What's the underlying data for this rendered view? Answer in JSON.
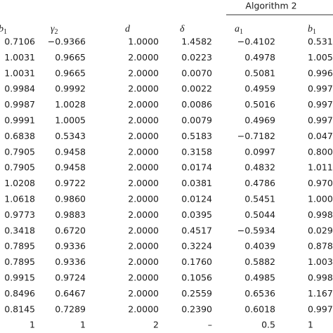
{
  "header": {
    "group": "Algorithm 2",
    "columns": [
      {
        "symbol": "b",
        "subscript": "1"
      },
      {
        "symbol": "γ",
        "subscript": "2"
      },
      {
        "symbol": "d"
      },
      {
        "symbol": "δ"
      },
      {
        "symbol": "a",
        "subscript": "1"
      },
      {
        "symbol": "b",
        "subscript": "1"
      }
    ]
  },
  "table": {
    "rows": [
      [
        "0.7106",
        "−0.9366",
        "1.0000",
        "1.4582",
        "−0.4102",
        "0.531"
      ],
      [
        "1.0031",
        "0.9665",
        "2.0000",
        "0.0223",
        "0.4978",
        "1.005"
      ],
      [
        "1.0031",
        "0.9665",
        "2.0000",
        "0.0070",
        "0.5081",
        "0.996"
      ],
      [
        "0.9984",
        "0.9992",
        "2.0000",
        "0.0022",
        "0.4959",
        "0.997"
      ],
      [
        "0.9987",
        "1.0028",
        "2.0000",
        "0.0086",
        "0.5016",
        "0.997"
      ],
      [
        "0.9991",
        "1.0005",
        "2.0000",
        "0.0079",
        "0.4969",
        "0.997"
      ],
      [
        "0.6838",
        "0.5343",
        "2.0000",
        "0.5183",
        "−0.7182",
        "0.047"
      ],
      [
        "0.7905",
        "0.9458",
        "2.0000",
        "0.3158",
        "0.0997",
        "0.800"
      ],
      [
        "0.7905",
        "0.9458",
        "2.0000",
        "0.0174",
        "0.4832",
        "1.011"
      ],
      [
        "1.0208",
        "0.9722",
        "2.0000",
        "0.0381",
        "0.4786",
        "0.970"
      ],
      [
        "1.0618",
        "0.9860",
        "2.0000",
        "0.0124",
        "0.5451",
        "1.000"
      ],
      [
        "0.9773",
        "0.9883",
        "2.0000",
        "0.0395",
        "0.5044",
        "0.998"
      ],
      [
        "0.3418",
        "0.6720",
        "2.0000",
        "0.4517",
        "−0.5934",
        "0.029"
      ],
      [
        "0.7895",
        "0.9336",
        "2.0000",
        "0.3224",
        "0.4039",
        "0.878"
      ],
      [
        "0.7895",
        "0.9336",
        "2.0000",
        "0.1760",
        "0.5882",
        "1.003"
      ],
      [
        "0.9915",
        "0.9724",
        "2.0000",
        "0.1056",
        "0.4985",
        "0.998"
      ],
      [
        "0.8496",
        "0.6467",
        "2.0000",
        "0.2559",
        "0.6536",
        "1.167"
      ],
      [
        "0.8145",
        "0.7289",
        "2.0000",
        "0.2390",
        "0.6018",
        "0.997"
      ],
      [
        "1",
        "1",
        "2",
        "–",
        "0.5",
        "1"
      ]
    ]
  }
}
